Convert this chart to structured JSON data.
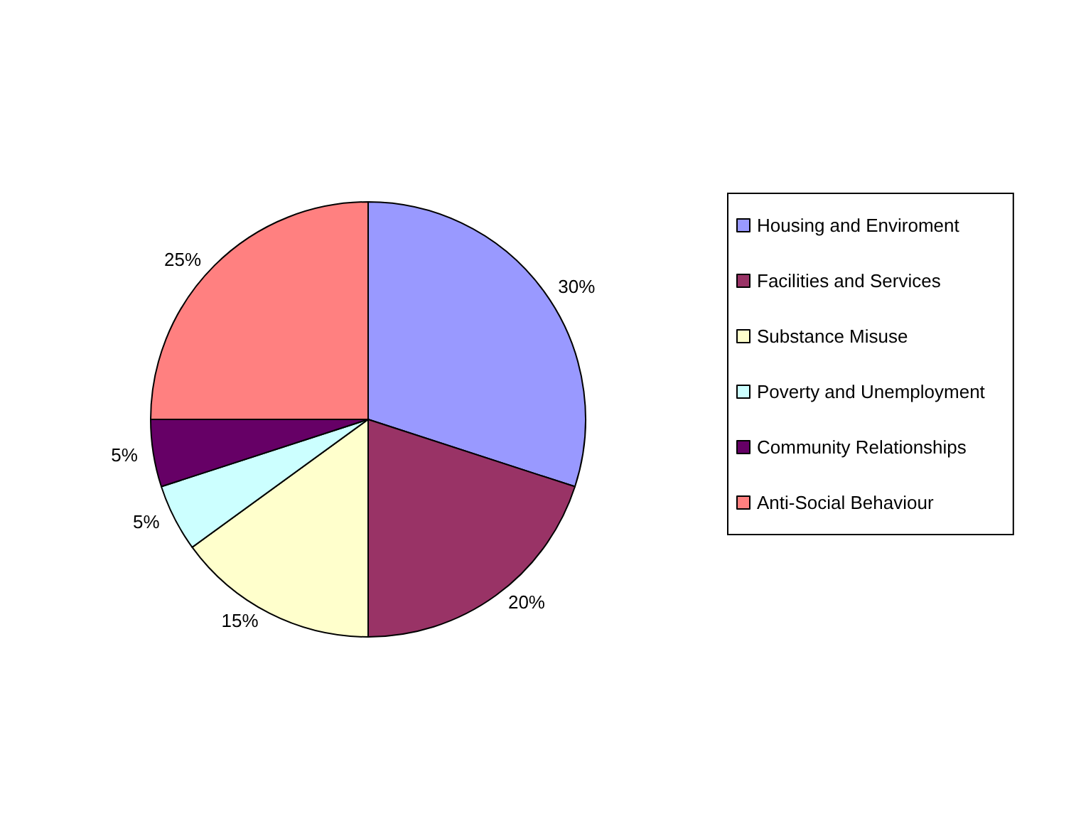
{
  "chart_data": {
    "type": "pie",
    "categories": [
      "Housing and Enviroment",
      "Facilities and Services",
      "Substance Misuse",
      "Poverty and Unemployment",
      "Community Relationships",
      "Anti-Social Behaviour"
    ],
    "values": [
      30,
      20,
      15,
      5,
      5,
      25
    ],
    "colors": [
      "#9999ff",
      "#993366",
      "#ffffcc",
      "#ccffff",
      "#660066",
      "#ff8080"
    ],
    "value_labels": [
      "30%",
      "20%",
      "15%",
      "5%",
      "5%",
      "25%"
    ],
    "legend": "right"
  }
}
